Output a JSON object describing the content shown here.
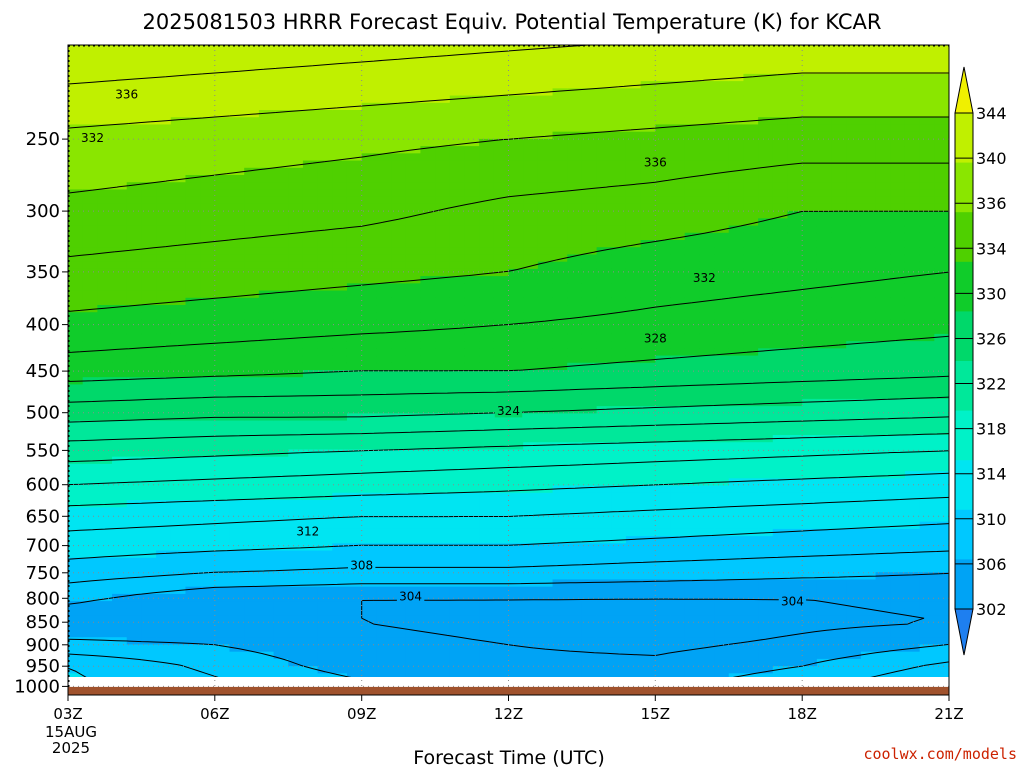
{
  "title": "2025081503 HRRR Forecast Equiv. Potential Temperature (K) for KCAR",
  "credit": "coolwx.com/models",
  "colors": {
    "ground": "#a0522d",
    "contour": "#000000",
    "grid": "#8a8a8a",
    "fill_scale": [
      "#1e7ff0",
      "#00a3f5",
      "#00c8ff",
      "#00e5f2",
      "#00f2c8",
      "#00e89a",
      "#00d86a",
      "#10cc2a",
      "#4fd000",
      "#8ae600",
      "#c0f000",
      "#f0f000"
    ]
  },
  "chart_data": {
    "type": "heatmap",
    "title": "2025081503 HRRR Forecast Equiv. Potential Temperature (K) for KCAR",
    "xlabel": "Forecast Time (UTC)",
    "ylabel": "",
    "x_ticks": [
      {
        "hour": 0,
        "label": "03Z",
        "sublabels": [
          "15AUG",
          "2025"
        ]
      },
      {
        "hour": 3,
        "label": "06Z"
      },
      {
        "hour": 6,
        "label": "09Z"
      },
      {
        "hour": 9,
        "label": "12Z"
      },
      {
        "hour": 12,
        "label": "15Z"
      },
      {
        "hour": 15,
        "label": "18Z"
      },
      {
        "hour": 18,
        "label": "21Z"
      }
    ],
    "x_range_hours": [
      0,
      18
    ],
    "y_axis": "pressure (log scale, inverted)",
    "y_range": [
      1022,
      197
    ],
    "y_ticks": [
      250,
      300,
      350,
      400,
      450,
      500,
      550,
      600,
      650,
      700,
      750,
      800,
      850,
      900,
      950,
      1000
    ],
    "grid": true,
    "surface_pressure": 1022,
    "colorbar": {
      "ticks": [
        302,
        306,
        310,
        314,
        318,
        322,
        326,
        330,
        334,
        336,
        340,
        344
      ],
      "min": 300,
      "max": 346,
      "extend": "both",
      "placement": "right"
    },
    "contour_levels": [
      302,
      304,
      306,
      308,
      310,
      312,
      314,
      316,
      318,
      320,
      322,
      324,
      326,
      328,
      330,
      332,
      334,
      336,
      338,
      340,
      342,
      344
    ],
    "contour_labels": [
      {
        "text": "336",
        "hour": 1.2,
        "p": 223
      },
      {
        "text": "332",
        "hour": 0.5,
        "p": 249
      },
      {
        "text": "336",
        "hour": 12.0,
        "p": 265
      },
      {
        "text": "332",
        "hour": 13.0,
        "p": 355
      },
      {
        "text": "328",
        "hour": 12.0,
        "p": 414
      },
      {
        "text": "324",
        "hour": 9.0,
        "p": 497
      },
      {
        "text": "312",
        "hour": 4.9,
        "p": 675
      },
      {
        "text": "308",
        "hour": 6.0,
        "p": 735
      },
      {
        "text": "304",
        "hour": 7.0,
        "p": 795
      },
      {
        "text": "304",
        "hour": 14.8,
        "p": 805
      }
    ],
    "series": [
      {
        "hours": [
          0,
          3,
          6,
          9,
          12,
          15,
          18
        ],
        "profiles": [
          {
            "p": [
              1000,
              950,
              900,
              850,
              800,
              750,
              700,
              650,
              600,
              550,
              500,
              450,
              400,
              350,
              300,
              250,
              200
            ],
            "theta_e": [
              [
                310.5,
                310.0,
                306.5,
                304.5,
                306.5,
                309.0,
                311.0,
                313.0,
                316.0,
                319.0,
                323.0,
                327.0,
                329.5,
                331.5,
                333.5,
                335.5,
                339.5
              ],
              [
                308.5,
                307.5,
                306.0,
                304.5,
                304.5,
                308.0,
                310.5,
                312.5,
                315.5,
                318.5,
                322.5,
                326.5,
                329.0,
                331.0,
                333.0,
                335.0,
                339.0
              ],
              [
                306.5,
                305.0,
                304.5,
                304.0,
                304.0,
                307.5,
                310.0,
                312.0,
                315.0,
                318.0,
                322.5,
                326.0,
                328.5,
                330.5,
                332.5,
                334.5,
                338.5
              ],
              [
                305.5,
                304.5,
                304.0,
                303.5,
                304.0,
                307.5,
                310.0,
                312.0,
                314.5,
                317.5,
                322.0,
                326.0,
                328.0,
                330.0,
                331.5,
                334.0,
                338.0
              ],
              [
                305.5,
                304.5,
                303.5,
                302.5,
                304.0,
                307.0,
                309.5,
                311.5,
                314.0,
                317.0,
                321.5,
                325.5,
                327.5,
                329.0,
                331.0,
                333.5,
                337.5
              ],
              [
                307.5,
                306.0,
                304.5,
                303.5,
                304.0,
                306.5,
                309.0,
                311.0,
                313.5,
                316.5,
                321.0,
                325.0,
                327.0,
                328.5,
                330.0,
                333.0,
                337.0
              ],
              [
                310.0,
                308.5,
                306.0,
                304.0,
                304.5,
                306.0,
                308.5,
                310.5,
                313.0,
                316.0,
                320.5,
                324.5,
                326.5,
                328.0,
                330.0,
                333.0,
                337.0
              ]
            ]
          }
        ]
      }
    ]
  }
}
